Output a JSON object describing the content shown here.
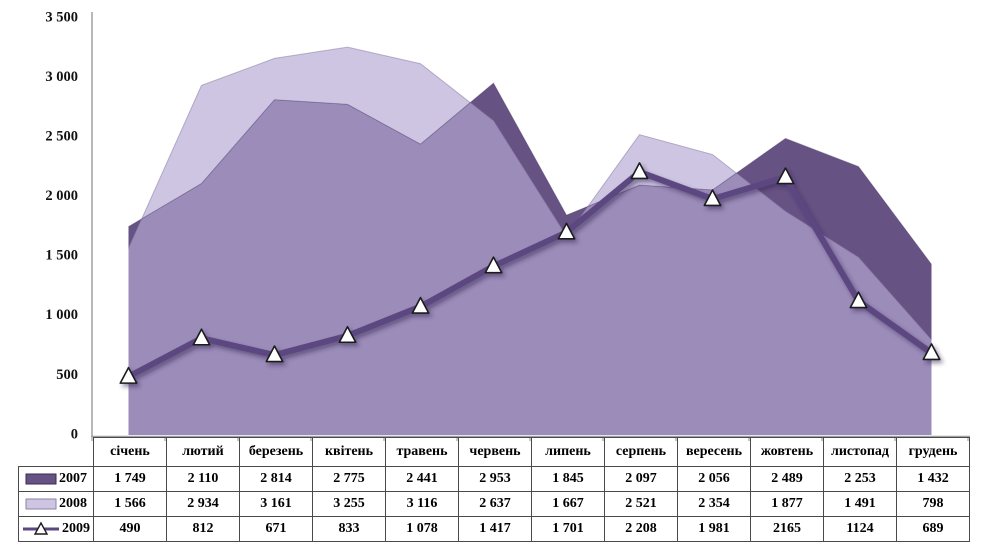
{
  "chart_data": {
    "type": "area+line",
    "title": "",
    "xlabel": "",
    "ylabel": "",
    "categories": [
      "січень",
      "лютий",
      "березень",
      "квітень",
      "травень",
      "червень",
      "липень",
      "серпень",
      "вересень",
      "жовтень",
      "листопад",
      "грудень"
    ],
    "series": [
      {
        "name": "2007",
        "type": "area",
        "values": [
          1749,
          2110,
          2814,
          2775,
          2441,
          2953,
          1845,
          2097,
          2056,
          2489,
          2253,
          1432
        ]
      },
      {
        "name": "2008",
        "type": "area",
        "values": [
          1566,
          2934,
          3161,
          3255,
          3116,
          2637,
          1667,
          2521,
          2354,
          1877,
          1491,
          798
        ]
      },
      {
        "name": "2009",
        "type": "line",
        "marker": "white-triangle-up",
        "values": [
          490,
          812,
          671,
          833,
          1078,
          1417,
          1701,
          2208,
          1981,
          2165,
          1124,
          689
        ]
      }
    ],
    "ylim": [
      0,
      3500
    ],
    "ytick_step": 500,
    "ytick_labels": [
      "0",
      "500",
      "1 000",
      "1 500",
      "2 000",
      "2 500",
      "3 000",
      "3 500"
    ],
    "grid": false,
    "legend_position": "table-rows-left",
    "colors": {
      "area_2007_dark": "#675284",
      "area_2008_lavender": "#cdc5e1",
      "overlap_medium": "#9b8cb9",
      "line_2009": "#5b4781",
      "marker_fill": "#ffffff",
      "marker_stroke": "#1c1c1c",
      "shadow": "#2f2350",
      "axis_gray": "#a0a0a0",
      "table_border": "#4a4a4a",
      "text": "#000000"
    }
  },
  "table": {
    "header_months": [
      "січень",
      "лютий",
      "березень",
      "квітень",
      "травень",
      "червень",
      "липень",
      "серпень",
      "вересень",
      "жовтень",
      "листопад",
      "грудень"
    ],
    "rows": [
      {
        "label": "2007",
        "swatch": "dark-rect",
        "cells": [
          "1 749",
          "2 110",
          "2 814",
          "2 775",
          "2 441",
          "2 953",
          "1 845",
          "2 097",
          "2 056",
          "2 489",
          "2 253",
          "1 432"
        ]
      },
      {
        "label": "2008",
        "swatch": "lavender-rect",
        "cells": [
          "1 566",
          "2 934",
          "3 161",
          "3 255",
          "3 116",
          "2 637",
          "1 667",
          "2 521",
          "2 354",
          "1 877",
          "1 491",
          "798"
        ]
      },
      {
        "label": "2009",
        "swatch": "line-triangle",
        "cells": [
          "490",
          "812",
          "671",
          "833",
          "1 078",
          "1 417",
          "1 701",
          "2 208",
          "1 981",
          "2165",
          "1124",
          "689"
        ]
      }
    ]
  },
  "layout_numbers": {
    "ytick_values": [
      0,
      500,
      1000,
      1500,
      2000,
      2500,
      3000,
      3500
    ]
  }
}
